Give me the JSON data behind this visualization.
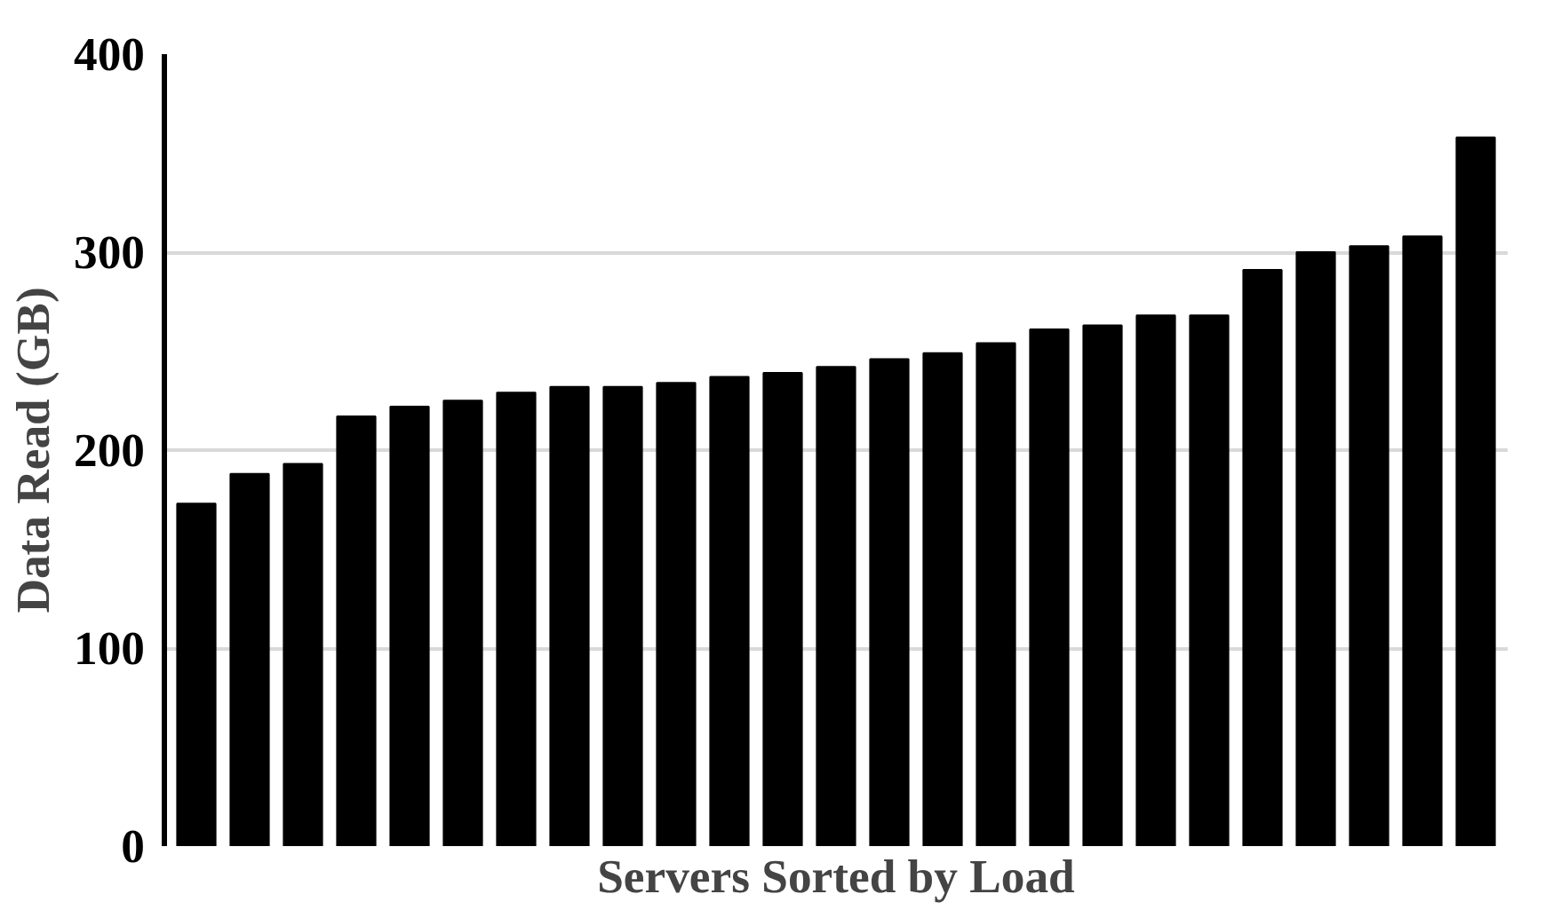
{
  "chart_data": {
    "type": "bar",
    "xlabel": "Servers Sorted by Load",
    "ylabel": "Data Read (GB)",
    "categories": [
      null,
      null,
      null,
      null,
      null,
      null,
      null,
      null,
      null,
      null,
      null,
      null,
      null,
      null,
      null,
      null,
      null,
      null,
      null,
      null,
      null,
      null,
      null,
      null,
      null
    ],
    "values": [
      173,
      188,
      193,
      217,
      222,
      225,
      229,
      232,
      232,
      234,
      237,
      239,
      242,
      246,
      249,
      254,
      261,
      263,
      268,
      268,
      291,
      300,
      303,
      308,
      358
    ],
    "color": "#000000",
    "ylim": [
      0,
      400
    ],
    "yticks": [
      0,
      100,
      200,
      300,
      400
    ],
    "grid": "y"
  }
}
